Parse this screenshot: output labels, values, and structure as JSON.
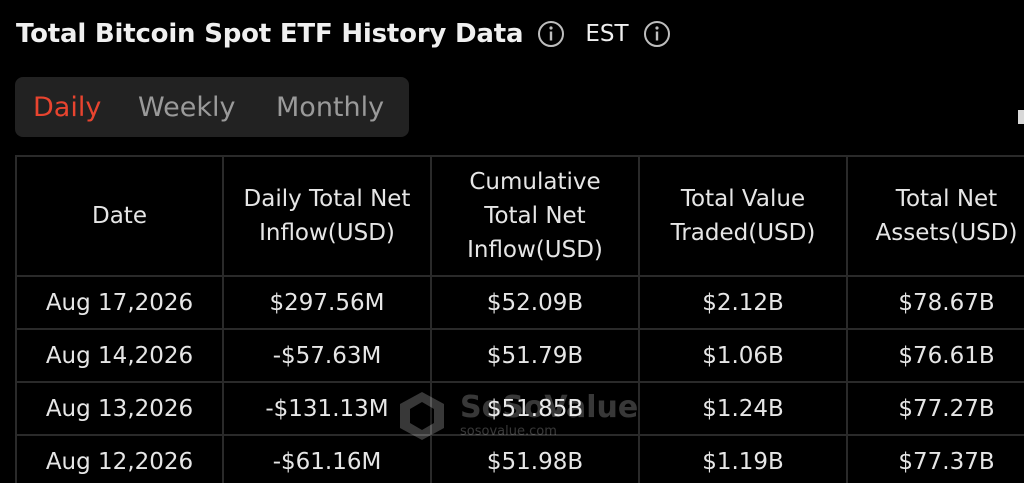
{
  "header": {
    "title": "Total Bitcoin Spot ETF History Data",
    "timezone": "EST",
    "title_info_icon": "info-icon",
    "timezone_info_icon": "info-icon"
  },
  "tabs": [
    {
      "label": "Daily",
      "active": true
    },
    {
      "label": "Weekly",
      "active": false
    },
    {
      "label": "Monthly",
      "active": false
    }
  ],
  "colors": {
    "background": "#000000",
    "active_tab": "#e8442f",
    "positive": "#3cc46a",
    "negative": "#e8442f",
    "tab_bar": "#222222"
  },
  "table": {
    "columns": [
      "Date",
      "Daily Total Net Inflow(USD)",
      "Cumulative Total Net Inflow(USD)",
      "Total Value Traded(USD)",
      "Total Net Assets(USD)"
    ],
    "rows": [
      {
        "date": "Aug 17,2026",
        "daily_inflow": "$297.56M",
        "cumulative": "$52.09B",
        "traded": "$2.12B",
        "assets": "$78.67B"
      },
      {
        "date": "Aug 14,2026",
        "daily_inflow": "-$57.63M",
        "cumulative": "$51.79B",
        "traded": "$1.06B",
        "assets": "$76.61B"
      },
      {
        "date": "Aug 13,2026",
        "daily_inflow": "-$131.13M",
        "cumulative": "$51.85B",
        "traded": "$1.24B",
        "assets": "$77.27B"
      },
      {
        "date": "Aug 12,2026",
        "daily_inflow": "-$61.16M",
        "cumulative": "$51.98B",
        "traded": "$1.19B",
        "assets": "$77.37B"
      }
    ]
  },
  "watermark": {
    "name": "SoSoValue",
    "url": "sosovalue.com"
  }
}
